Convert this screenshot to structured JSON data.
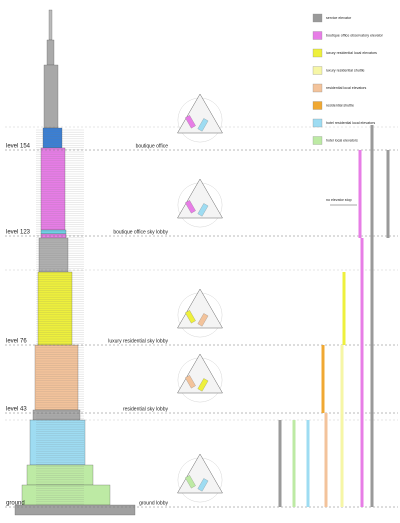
{
  "legend": [
    {
      "label": "service elevator",
      "color": "#9a9a9a"
    },
    {
      "label": "boutique office observatory elevator",
      "color": "#e77de6"
    },
    {
      "label": "luxury residential local elevators",
      "color": "#eef03c"
    },
    {
      "label": "luxury residential shuttle",
      "color": "#f6f6a6"
    },
    {
      "label": "residential local elevators",
      "color": "#f3c39b"
    },
    {
      "label": "residential shuttle",
      "color": "#f0a832"
    },
    {
      "label": "hotel residential local elevators",
      "color": "#9edcf2"
    },
    {
      "label": "hotel local elevators",
      "color": "#bdeaa4"
    }
  ],
  "levels": [
    {
      "label": "level 154"
    },
    {
      "label": "level 123"
    },
    {
      "label": "level 76"
    },
    {
      "label": "level 43"
    },
    {
      "label": "ground"
    }
  ],
  "lobbies": [
    {
      "label": "boutique office"
    },
    {
      "label": "boutique office sky lobby"
    },
    {
      "label": "luxury residential sky lobby"
    },
    {
      "label": "residential sky lobby"
    },
    {
      "label": "ground lobby"
    }
  ],
  "annotation": "no elevator stop"
}
